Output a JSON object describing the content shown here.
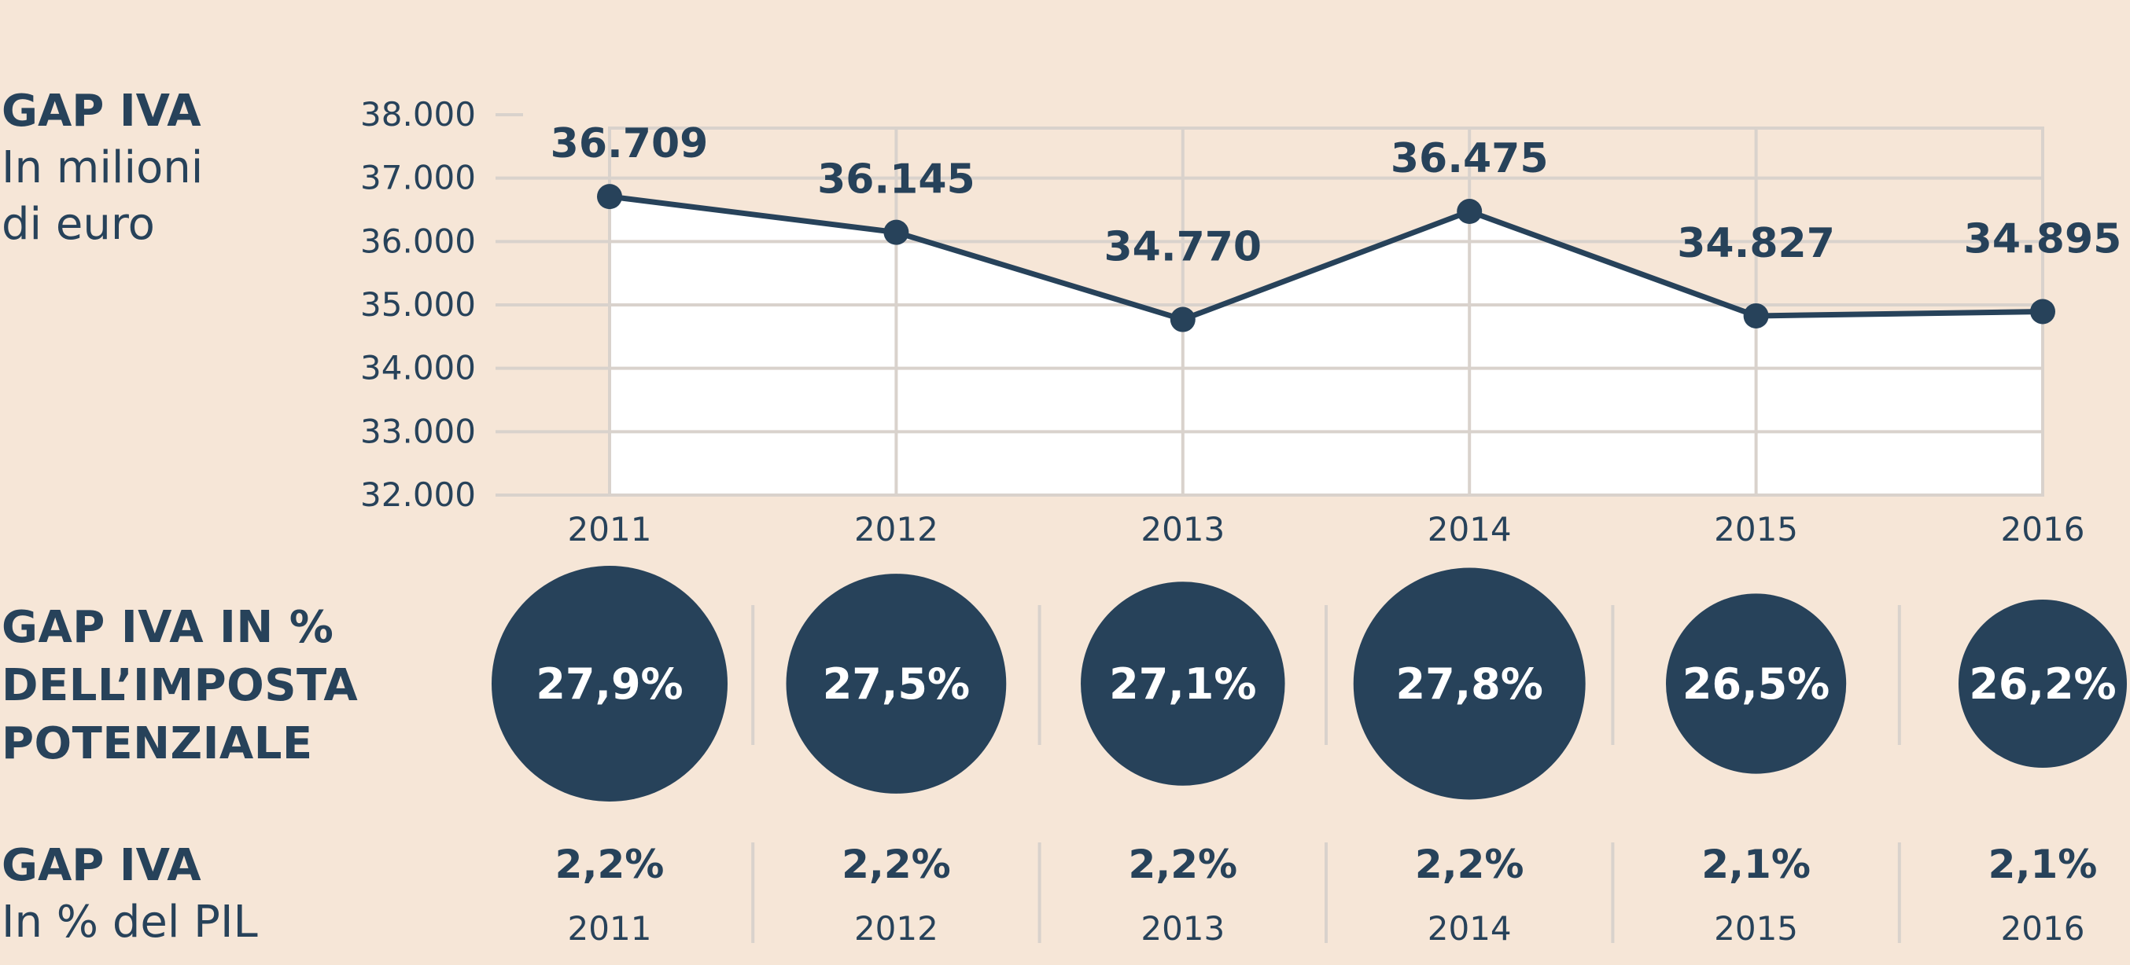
{
  "labels": {
    "chart_title": "GAP IVA",
    "chart_subtitle_1": "In milioni",
    "chart_subtitle_2": "di euro",
    "pct_title_1": "GAP IVA IN %",
    "pct_title_2": "DELL’IMPOSTA",
    "pct_title_3": "POTENZIALE",
    "pil_title": "GAP IVA",
    "pil_subtitle": "In % del PIL"
  },
  "colors": {
    "background": "#f6e6d7",
    "ink": "#27425a",
    "plot_fill": "#ffffff",
    "grid": "#d9d2cc"
  },
  "chart_data": [
    {
      "type": "area",
      "title": "GAP IVA",
      "subtitle": "In milioni di euro",
      "categories": [
        "2011",
        "2012",
        "2013",
        "2014",
        "2015",
        "2016"
      ],
      "values": [
        36709,
        36145,
        34770,
        36475,
        34827,
        34895
      ],
      "value_labels": [
        "36.709",
        "36.145",
        "34.770",
        "36.475",
        "34.827",
        "34.895"
      ],
      "yticks": [
        "38.000",
        "37.000",
        "36.000",
        "35.000",
        "34.000",
        "33.000",
        "32.000"
      ],
      "ylim": [
        32000,
        38000
      ],
      "grid": true
    },
    {
      "type": "bubble",
      "title": "GAP IVA IN % DELL’IMPOSTA POTENZIALE",
      "categories": [
        "2011",
        "2012",
        "2013",
        "2014",
        "2015",
        "2016"
      ],
      "values": [
        27.9,
        27.5,
        27.1,
        27.8,
        26.5,
        26.2
      ],
      "value_labels": [
        "27,9%",
        "27,5%",
        "27,1%",
        "27,8%",
        "26,5%",
        "26,2%"
      ]
    },
    {
      "type": "table",
      "title": "GAP IVA",
      "subtitle": "In % del PIL",
      "categories": [
        "2011",
        "2012",
        "2013",
        "2014",
        "2015",
        "2016"
      ],
      "values": [
        2.2,
        2.2,
        2.2,
        2.2,
        2.1,
        2.1
      ],
      "value_labels": [
        "2,2%",
        "2,2%",
        "2,2%",
        "2,2%",
        "2,1%",
        "2,1%"
      ]
    }
  ]
}
